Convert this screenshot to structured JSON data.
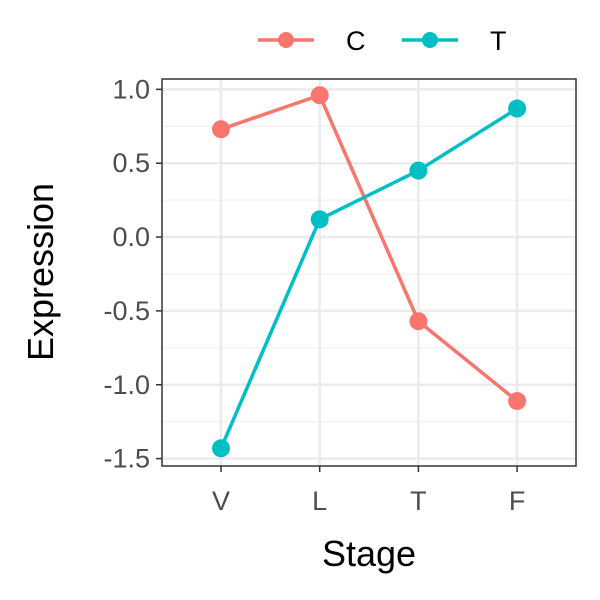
{
  "chart_data": {
    "type": "line",
    "title": "",
    "xlabel": "Stage",
    "ylabel": "Expression",
    "categories": [
      "V",
      "L",
      "T",
      "F"
    ],
    "ylim": [
      -1.55,
      1.07
    ],
    "yticks": [
      1.0,
      0.5,
      0.0,
      -0.5,
      -1.0,
      -1.5
    ],
    "ytick_labels": [
      "1.0",
      "0.5",
      "0.0",
      "-0.5",
      "-1.0",
      "-1.5"
    ],
    "grid": true,
    "legend_position": "top",
    "series": [
      {
        "name": "C",
        "color": "#F8766D",
        "values": [
          0.73,
          0.96,
          -0.57,
          -1.11
        ]
      },
      {
        "name": "T",
        "color": "#00BFC4",
        "values": [
          -1.43,
          0.12,
          0.45,
          0.87
        ]
      }
    ]
  }
}
